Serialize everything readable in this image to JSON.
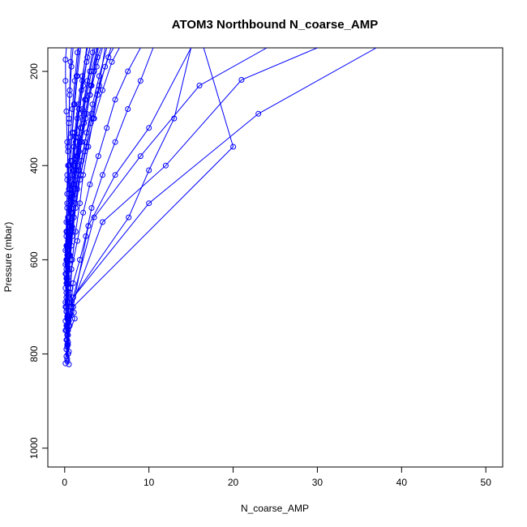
{
  "chart_data": {
    "type": "line",
    "title": "ATOM3 Northbound N_coarse_AMP",
    "xlabel": "N_coarse_AMP",
    "ylabel": "Pressure (mbar)",
    "xlim": [
      -2,
      52
    ],
    "ylim": [
      1040,
      150
    ],
    "y_reversed": true,
    "x_ticks": [
      0,
      10,
      20,
      30,
      40,
      50
    ],
    "y_ticks": [
      200,
      400,
      600,
      800,
      1000
    ],
    "grid": false,
    "legend": "none",
    "color": "#0000FF",
    "point_style": "open-circle",
    "series": [
      {
        "points": [
          [
            0.1,
            820
          ],
          [
            0.3,
            810
          ],
          [
            0.4,
            780
          ],
          [
            0.2,
            750
          ],
          [
            0.3,
            720
          ],
          [
            0.5,
            690
          ],
          [
            0.4,
            650
          ],
          [
            0.3,
            600
          ],
          [
            0.5,
            560
          ],
          [
            0.8,
            500
          ],
          [
            1.2,
            450
          ],
          [
            1.5,
            400
          ],
          [
            2.0,
            350
          ],
          [
            2.5,
            300
          ],
          [
            3.0,
            250
          ],
          [
            3.5,
            200
          ],
          [
            4.0,
            150
          ]
        ]
      },
      {
        "points": [
          [
            0.5,
            822
          ],
          [
            0.4,
            800
          ],
          [
            0.3,
            770
          ],
          [
            0.5,
            730
          ],
          [
            1.1,
            712
          ],
          [
            0.6,
            670
          ],
          [
            0.8,
            620
          ],
          [
            1.5,
            560
          ],
          [
            2.2,
            500
          ],
          [
            3.0,
            440
          ],
          [
            4.0,
            380
          ],
          [
            5.0,
            320
          ],
          [
            6.0,
            260
          ],
          [
            7.5,
            200
          ],
          [
            9.0,
            150
          ]
        ]
      },
      {
        "points": [
          [
            0.3,
            815
          ],
          [
            0.2,
            790
          ],
          [
            0.4,
            760
          ],
          [
            1.2,
            725
          ],
          [
            0.7,
            700
          ],
          [
            1.0,
            650
          ],
          [
            1.8,
            600
          ],
          [
            2.5,
            550
          ],
          [
            3.2,
            490
          ],
          [
            4.5,
            420
          ],
          [
            6.0,
            350
          ],
          [
            7.5,
            280
          ],
          [
            9.0,
            220
          ],
          [
            10.5,
            150
          ]
        ]
      },
      {
        "points": [
          [
            0.2,
            805
          ],
          [
            0.3,
            780
          ],
          [
            0.6,
            740
          ],
          [
            1.0,
            700
          ],
          [
            2.8,
            528
          ],
          [
            6.0,
            420
          ],
          [
            10.0,
            320
          ],
          [
            15.0,
            150
          ]
        ]
      },
      {
        "points": [
          [
            0.4,
            800
          ],
          [
            0.3,
            760
          ],
          [
            0.5,
            720
          ],
          [
            1.0,
            680
          ],
          [
            3.5,
            510
          ],
          [
            9.0,
            380
          ],
          [
            16.0,
            230
          ],
          [
            24.0,
            150
          ]
        ]
      },
      {
        "points": [
          [
            0.5,
            795
          ],
          [
            0.4,
            750
          ],
          [
            0.8,
            700
          ],
          [
            4.5,
            520
          ],
          [
            12.0,
            400
          ],
          [
            21.0,
            218
          ],
          [
            30.0,
            150
          ]
        ]
      },
      {
        "points": [
          [
            0.2,
            790
          ],
          [
            0.3,
            740
          ],
          [
            0.6,
            690
          ],
          [
            7.6,
            510
          ],
          [
            10.0,
            410
          ],
          [
            13.0,
            300
          ],
          [
            15.0,
            150
          ]
        ]
      },
      {
        "points": [
          [
            0.3,
            785
          ],
          [
            0.5,
            740
          ],
          [
            1.0,
            700
          ],
          [
            20.0,
            360
          ],
          [
            16.5,
            150
          ]
        ]
      },
      {
        "points": [
          [
            0.4,
            775
          ],
          [
            0.6,
            720
          ],
          [
            1.0,
            680
          ],
          [
            10.0,
            480
          ],
          [
            23.0,
            290
          ],
          [
            37.0,
            150
          ]
        ]
      },
      {
        "points": [
          [
            0.2,
            770
          ],
          [
            0.4,
            720
          ],
          [
            0.7,
            660
          ],
          [
            0.9,
            600
          ],
          [
            1.3,
            540
          ],
          [
            1.8,
            480
          ],
          [
            2.2,
            420
          ],
          [
            2.8,
            360
          ],
          [
            3.4,
            300
          ],
          [
            4.0,
            240
          ],
          [
            4.8,
            150
          ]
        ]
      },
      {
        "points": [
          [
            0.3,
            760
          ],
          [
            0.2,
            710
          ],
          [
            0.4,
            650
          ],
          [
            0.6,
            590
          ],
          [
            0.9,
            530
          ],
          [
            1.2,
            470
          ],
          [
            1.6,
            410
          ],
          [
            2.0,
            350
          ],
          [
            2.6,
            290
          ],
          [
            3.2,
            230
          ],
          [
            3.8,
            150
          ]
        ]
      },
      {
        "points": [
          [
            0.1,
            750
          ],
          [
            0.2,
            700
          ],
          [
            0.3,
            640
          ],
          [
            0.4,
            580
          ],
          [
            0.6,
            520
          ],
          [
            0.8,
            460
          ],
          [
            1.0,
            400
          ],
          [
            1.3,
            340
          ],
          [
            1.7,
            280
          ],
          [
            2.1,
            220
          ],
          [
            2.6,
            150
          ]
        ]
      },
      {
        "points": [
          [
            0.2,
            740
          ],
          [
            0.1,
            690
          ],
          [
            0.2,
            630
          ],
          [
            0.3,
            570
          ],
          [
            0.4,
            510
          ],
          [
            0.5,
            450
          ],
          [
            0.7,
            390
          ],
          [
            0.9,
            330
          ],
          [
            1.1,
            270
          ],
          [
            1.4,
            210
          ],
          [
            1.7,
            150
          ]
        ]
      },
      {
        "points": [
          [
            0.1,
            730
          ],
          [
            0.2,
            670
          ],
          [
            0.1,
            610
          ],
          [
            0.2,
            550
          ],
          [
            0.3,
            490
          ],
          [
            0.3,
            430
          ],
          [
            0.4,
            370
          ],
          [
            0.5,
            310
          ],
          [
            0.6,
            250
          ],
          [
            0.8,
            190
          ],
          [
            1.0,
            150
          ]
        ]
      },
      {
        "points": [
          [
            0.3,
            725
          ],
          [
            0.4,
            660
          ],
          [
            0.6,
            600
          ],
          [
            0.9,
            540
          ],
          [
            1.3,
            480
          ],
          [
            1.9,
            420
          ],
          [
            2.6,
            360
          ],
          [
            3.5,
            300
          ],
          [
            4.5,
            240
          ],
          [
            5.6,
            180
          ],
          [
            6.5,
            150
          ]
        ]
      },
      {
        "points": [
          [
            0.2,
            710
          ],
          [
            0.3,
            650
          ],
          [
            0.5,
            590
          ],
          [
            0.8,
            530
          ],
          [
            1.2,
            470
          ],
          [
            1.7,
            410
          ],
          [
            2.4,
            350
          ],
          [
            3.2,
            290
          ],
          [
            4.1,
            230
          ],
          [
            5.2,
            170
          ],
          [
            5.8,
            150
          ]
        ]
      },
      {
        "points": [
          [
            0.1,
            700
          ],
          [
            0.2,
            640
          ],
          [
            0.3,
            580
          ],
          [
            0.4,
            520
          ],
          [
            0.5,
            460
          ],
          [
            0.4,
            400
          ],
          [
            0.3,
            350
          ],
          [
            0.2,
            285
          ],
          [
            0.1,
            220
          ],
          [
            0.1,
            175
          ],
          [
            0.2,
            150
          ]
        ]
      },
      {
        "points": [
          [
            0.3,
            690
          ],
          [
            0.5,
            630
          ],
          [
            0.8,
            570
          ],
          [
            1.1,
            510
          ],
          [
            1.5,
            450
          ],
          [
            2.0,
            390
          ],
          [
            2.6,
            330
          ],
          [
            3.3,
            270
          ],
          [
            4.1,
            210
          ],
          [
            5.0,
            150
          ]
        ]
      },
      {
        "points": [
          [
            0.2,
            680
          ],
          [
            0.4,
            620
          ],
          [
            0.6,
            560
          ],
          [
            0.8,
            500
          ],
          [
            1.1,
            440
          ],
          [
            1.5,
            380
          ],
          [
            1.9,
            320
          ],
          [
            2.4,
            260
          ],
          [
            3.0,
            200
          ],
          [
            3.6,
            150
          ]
        ]
      },
      {
        "points": [
          [
            0.4,
            670
          ],
          [
            0.6,
            610
          ],
          [
            0.9,
            550
          ],
          [
            1.3,
            490
          ],
          [
            1.8,
            430
          ],
          [
            2.4,
            370
          ],
          [
            3.1,
            310
          ],
          [
            3.9,
            250
          ],
          [
            4.8,
            190
          ],
          [
            5.5,
            150
          ]
        ]
      },
      {
        "points": [
          [
            0.1,
            660
          ],
          [
            0.2,
            600
          ],
          [
            0.2,
            540
          ],
          [
            0.3,
            480
          ],
          [
            0.3,
            420
          ],
          [
            0.4,
            360
          ],
          [
            0.5,
            300
          ],
          [
            0.6,
            240
          ],
          [
            0.7,
            180
          ],
          [
            0.8,
            150
          ]
        ]
      },
      {
        "points": [
          [
            0.2,
            650
          ],
          [
            0.3,
            590
          ],
          [
            0.5,
            530
          ],
          [
            0.7,
            470
          ],
          [
            1.0,
            410
          ],
          [
            1.3,
            350
          ],
          [
            1.7,
            290
          ],
          [
            2.2,
            230
          ],
          [
            2.7,
            170
          ],
          [
            3.0,
            150
          ]
        ]
      },
      {
        "points": [
          [
            0.3,
            640
          ],
          [
            0.4,
            580
          ],
          [
            0.6,
            520
          ],
          [
            0.9,
            460
          ],
          [
            1.2,
            400
          ],
          [
            1.6,
            340
          ],
          [
            2.1,
            280
          ],
          [
            2.7,
            220
          ],
          [
            3.3,
            160
          ],
          [
            3.4,
            150
          ]
        ]
      },
      {
        "points": [
          [
            0.1,
            630
          ],
          [
            0.3,
            570
          ],
          [
            0.4,
            510
          ],
          [
            0.5,
            450
          ],
          [
            0.7,
            390
          ],
          [
            0.9,
            330
          ],
          [
            1.2,
            270
          ],
          [
            1.5,
            210
          ],
          [
            1.9,
            150
          ]
        ]
      },
      {
        "points": [
          [
            0.2,
            620
          ],
          [
            0.4,
            560
          ],
          [
            0.7,
            500
          ],
          [
            1.0,
            440
          ],
          [
            1.4,
            380
          ],
          [
            1.9,
            320
          ],
          [
            2.5,
            260
          ],
          [
            3.2,
            200
          ],
          [
            3.9,
            150
          ]
        ]
      },
      {
        "points": [
          [
            0.3,
            610
          ],
          [
            0.5,
            550
          ],
          [
            0.8,
            490
          ],
          [
            1.2,
            430
          ],
          [
            1.7,
            370
          ],
          [
            2.3,
            310
          ],
          [
            3.0,
            250
          ],
          [
            3.8,
            190
          ],
          [
            4.5,
            150
          ]
        ]
      },
      {
        "points": [
          [
            0.2,
            600
          ],
          [
            0.3,
            540
          ],
          [
            0.5,
            480
          ],
          [
            0.8,
            420
          ],
          [
            1.1,
            360
          ],
          [
            1.5,
            300
          ],
          [
            2.0,
            240
          ],
          [
            2.6,
            180
          ],
          [
            3.0,
            150
          ]
        ]
      },
      {
        "points": [
          [
            0.4,
            590
          ],
          [
            0.6,
            530
          ],
          [
            0.9,
            470
          ],
          [
            1.3,
            410
          ],
          [
            1.8,
            350
          ],
          [
            2.4,
            290
          ],
          [
            3.1,
            230
          ],
          [
            3.9,
            170
          ],
          [
            4.3,
            150
          ]
        ]
      },
      {
        "points": [
          [
            0.1,
            580
          ],
          [
            0.2,
            520
          ],
          [
            0.3,
            460
          ],
          [
            0.5,
            400
          ],
          [
            0.7,
            340
          ],
          [
            0.9,
            280
          ],
          [
            1.2,
            220
          ],
          [
            1.5,
            160
          ],
          [
            1.6,
            150
          ]
        ]
      },
      {
        "points": [
          [
            0.2,
            570
          ],
          [
            0.4,
            510
          ],
          [
            0.6,
            450
          ],
          [
            0.9,
            390
          ],
          [
            1.2,
            330
          ],
          [
            1.6,
            270
          ],
          [
            2.1,
            210
          ],
          [
            2.7,
            150
          ]
        ]
      }
    ]
  }
}
